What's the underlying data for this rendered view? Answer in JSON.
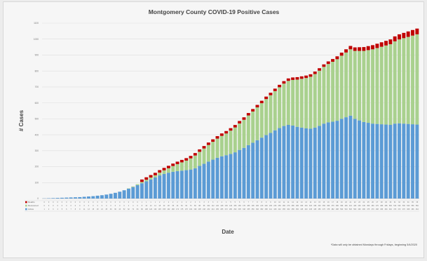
{
  "chart_data": {
    "type": "bar",
    "stacked": true,
    "title": "Montgomery County COVID-19 Positive Cases",
    "xlabel": "Date",
    "ylabel": "# Cases",
    "ylim": [
      0,
      1100
    ],
    "yticks": [
      0,
      100,
      200,
      300,
      400,
      500,
      600,
      700,
      800,
      900,
      1000,
      1100
    ],
    "grid": true,
    "legend_position": "bottom-left (data table)",
    "note": "*Data will only be obtained Mondays through Fridays, beginning 5/4/2020",
    "series": [
      {
        "name": "Deaths",
        "color": "#c00000",
        "values": [
          0,
          0,
          0,
          0,
          0,
          0,
          0,
          0,
          0,
          0,
          0,
          0,
          0,
          0,
          0,
          0,
          0,
          0,
          0,
          0,
          0,
          0,
          1,
          1,
          1,
          1,
          2,
          2,
          2,
          2,
          2,
          2,
          2,
          2,
          3,
          3,
          3,
          3,
          3,
          3,
          4,
          4,
          5,
          5,
          6,
          6,
          7,
          7,
          8,
          8,
          9,
          9,
          10,
          10,
          11,
          11,
          12,
          12,
          13,
          13,
          14,
          14,
          15,
          15,
          16,
          17,
          18,
          19,
          20,
          21,
          22,
          23,
          24,
          25,
          26,
          27,
          28,
          29,
          30,
          31,
          32,
          33,
          34,
          35,
          36
        ]
      },
      {
        "name": "Recovered",
        "color": "#a9d18e",
        "values": [
          0,
          0,
          0,
          0,
          0,
          0,
          0,
          0,
          0,
          0,
          0,
          0,
          0,
          0,
          0,
          0,
          0,
          0,
          0,
          2,
          4,
          6,
          8,
          10,
          12,
          14,
          18,
          22,
          28,
          36,
          44,
          52,
          60,
          70,
          80,
          88,
          96,
          104,
          112,
          120,
          128,
          136,
          146,
          156,
          166,
          176,
          186,
          196,
          206,
          216,
          226,
          236,
          246,
          256,
          266,
          276,
          286,
          296,
          306,
          316,
          326,
          336,
          346,
          356,
          366,
          376,
          386,
          396,
          406,
          416,
          426,
          436,
          446,
          456,
          466,
          476,
          486,
          496,
          506,
          516,
          526,
          536,
          546,
          556,
          566
        ]
      },
      {
        "name": "Active",
        "color": "#5b9bd5",
        "values": [
          1,
          2,
          3,
          4,
          5,
          6,
          7,
          8,
          9,
          11,
          13,
          15,
          18,
          21,
          25,
          30,
          36,
          43,
          52,
          62,
          72,
          84,
          96,
          108,
          120,
          132,
          145,
          155,
          162,
          168,
          172,
          175,
          178,
          182,
          190,
          205,
          218,
          232,
          244,
          256,
          265,
          272,
          280,
          290,
          305,
          318,
          335,
          350,
          366,
          382,
          398,
          412,
          428,
          442,
          455,
          462,
          458,
          450,
          445,
          440,
          438,
          445,
          456,
          470,
          478,
          482,
          488,
          500,
          510,
          520,
          500,
          490,
          480,
          475,
          470,
          468,
          466,
          464,
          462,
          470,
          472,
          470,
          468,
          466,
          464
        ]
      }
    ]
  }
}
